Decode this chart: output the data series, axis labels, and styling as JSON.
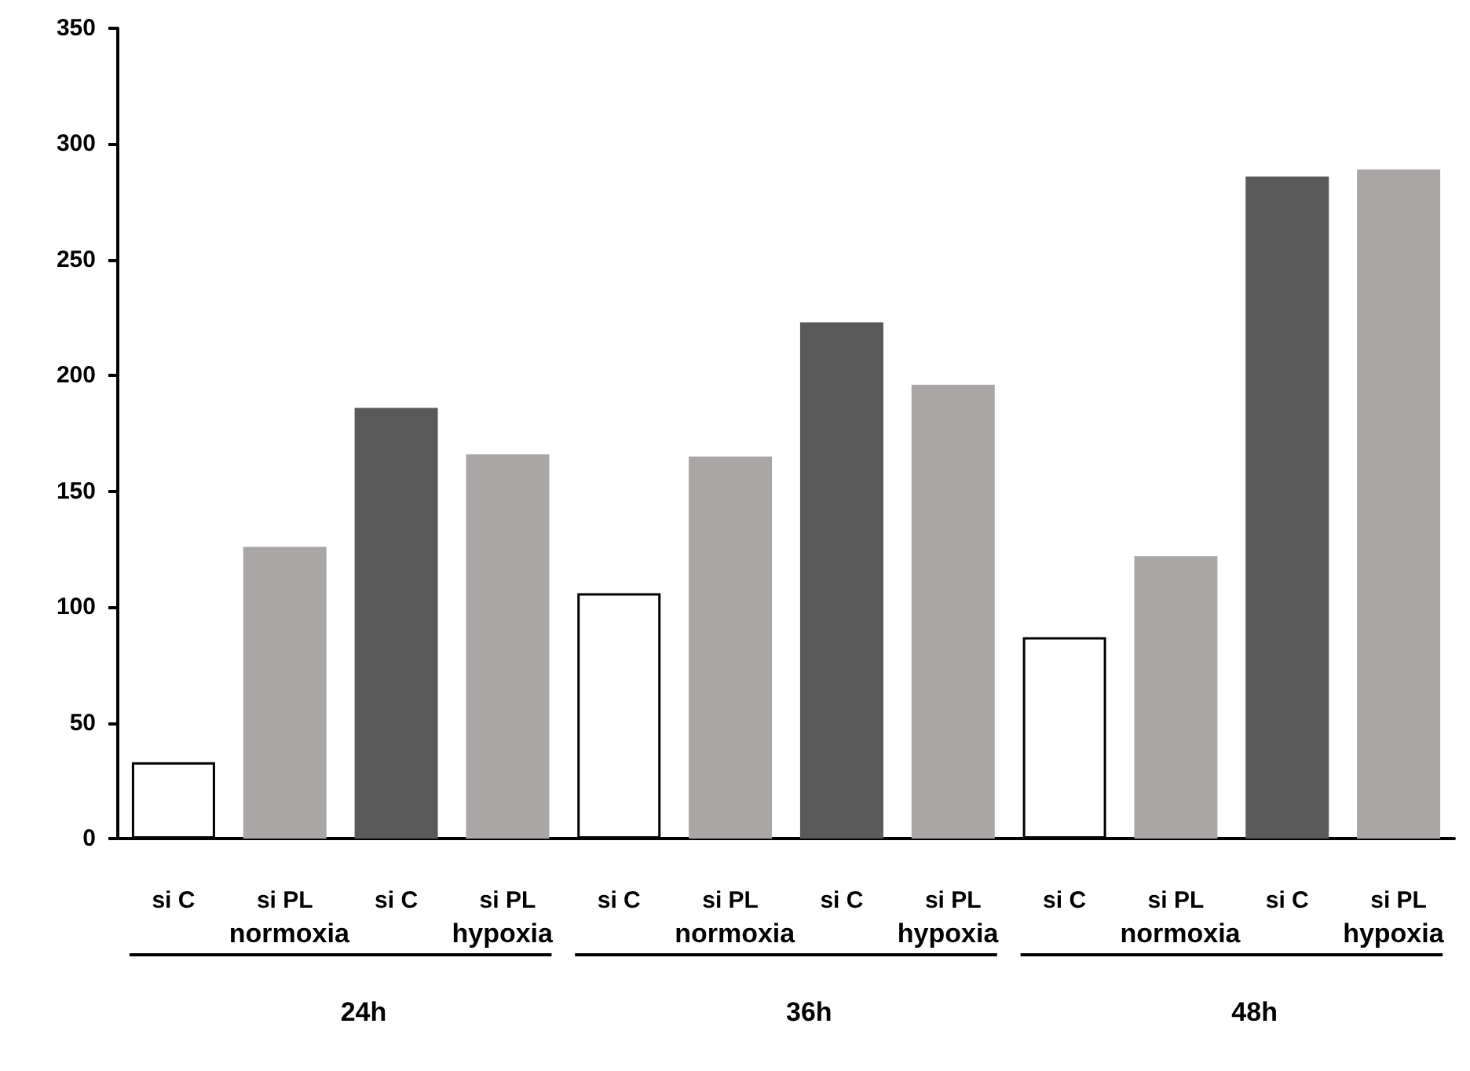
{
  "chart_data": {
    "type": "bar",
    "categories": [
      "si C",
      "si PL",
      "si C",
      "si PL",
      "si C",
      "si PL",
      "si C",
      "si PL",
      "si C",
      "si PL",
      "si C",
      "si PL"
    ],
    "values": [
      33,
      126,
      186,
      166,
      106,
      165,
      223,
      196,
      87,
      122,
      286,
      289
    ],
    "colors": [
      "#ffffff",
      "#aaa6a6",
      "#595959",
      "#aaa6a6",
      "#ffffff",
      "#aaa6a6",
      "#595959",
      "#aaa6a6",
      "#ffffff",
      "#aaa6a6",
      "#595959",
      "#aaa6a6"
    ],
    "ylim": [
      0,
      350
    ],
    "yticks": [
      0,
      50,
      100,
      150,
      200,
      250,
      300,
      350
    ],
    "annotations": [
      "normoxia",
      "hypoxia",
      "normoxia",
      "hypoxia",
      "normoxia",
      "hypoxia",
      "24h",
      "36h",
      "48h"
    ]
  }
}
